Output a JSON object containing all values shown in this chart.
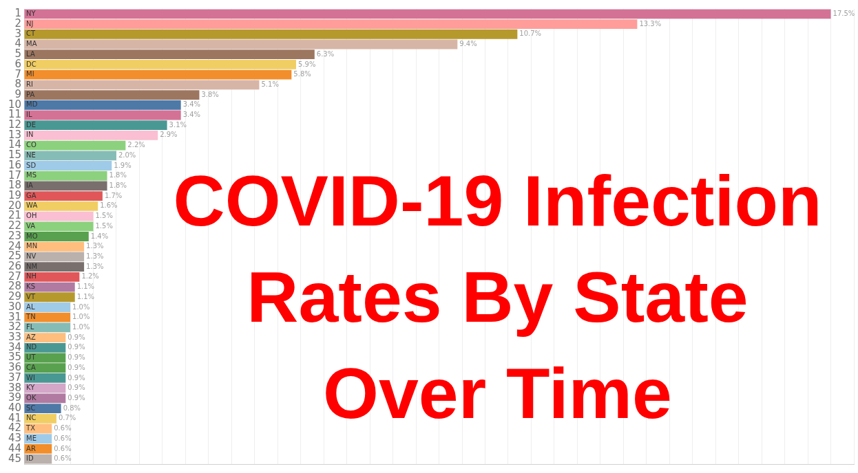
{
  "chart_data": {
    "type": "bar",
    "orientation": "horizontal",
    "title": "COVID-19 Infection Rates By State Over Time",
    "categories": [
      "1",
      "2",
      "3",
      "4",
      "5",
      "6",
      "7",
      "8",
      "9",
      "10",
      "11",
      "12",
      "13",
      "14",
      "15",
      "16",
      "17",
      "18",
      "19",
      "20",
      "21",
      "22",
      "23",
      "24",
      "25",
      "26",
      "27",
      "28",
      "29",
      "30",
      "31",
      "32",
      "33",
      "34",
      "35",
      "36",
      "37",
      "38",
      "39",
      "40",
      "41",
      "42",
      "43",
      "44",
      "45"
    ],
    "values": [
      17.5,
      13.3,
      10.7,
      9.4,
      6.3,
      5.9,
      5.8,
      5.1,
      3.8,
      3.4,
      3.4,
      3.1,
      2.9,
      2.2,
      2.0,
      1.9,
      1.8,
      1.8,
      1.7,
      1.6,
      1.5,
      1.5,
      1.4,
      1.3,
      1.3,
      1.3,
      1.2,
      1.1,
      1.1,
      1.0,
      1.0,
      1.0,
      0.9,
      0.9,
      0.9,
      0.9,
      0.9,
      0.9,
      0.9,
      0.8,
      0.7,
      0.6,
      0.6,
      0.6,
      0.6
    ],
    "value_labels": [
      "17.5%",
      "13.3%",
      "10.7%",
      "9.4%",
      "6.3%",
      "5.9%",
      "5.8%",
      "5.1%",
      "3.8%",
      "3.4%",
      "3.4%",
      "3.1%",
      "2.9%",
      "2.2%",
      "2.0%",
      "1.9%",
      "1.8%",
      "1.8%",
      "1.7%",
      "1.6%",
      "1.5%",
      "1.5%",
      "1.4%",
      "1.3%",
      "1.3%",
      "1.3%",
      "1.2%",
      "1.1%",
      "1.1%",
      "1.0%",
      "1.0%",
      "1.0%",
      "0.9%",
      "0.9%",
      "0.9%",
      "0.9%",
      "0.9%",
      "0.9%",
      "0.9%",
      "0.8%",
      "0.7%",
      "0.6%",
      "0.6%",
      "0.6%",
      "0.6%"
    ],
    "colors": [
      "#d37295",
      "#ff9d9a",
      "#b6992d",
      "#d7b5a6",
      "#9d7660",
      "#f1ce63",
      "#f28e2b",
      "#d7b5a6",
      "#9d7660",
      "#4e79a7",
      "#d37295",
      "#499894",
      "#fabfd2",
      "#8cd17d",
      "#86bcb6",
      "#a0cbe8",
      "#8cd17d",
      "#79706e",
      "#e15759",
      "#f1ce63",
      "#fabfd2",
      "#8cd17d",
      "#59a14f",
      "#ffbe7d",
      "#bab0ac",
      "#79706e",
      "#e15759",
      "#b07aa1",
      "#b6992d",
      "#a0cbe8",
      "#f28e2b",
      "#86bcb6",
      "#ffbe7d",
      "#499894",
      "#59a14f",
      "#59a14f",
      "#499894",
      "#d4a6c8",
      "#b07aa1",
      "#4e79a7",
      "#f1ce63",
      "#ffbe7d",
      "#a0cbe8",
      "#f28e2b",
      "#bab0ac"
    ],
    "annotations": [
      {
        "text": "NY",
        "y": "1"
      },
      {
        "text": "NJ",
        "y": "2"
      },
      {
        "text": "CT",
        "y": "3"
      },
      {
        "text": "MA",
        "y": "4"
      },
      {
        "text": "LA",
        "y": "5"
      },
      {
        "text": "DC",
        "y": "6"
      },
      {
        "text": "MI",
        "y": "7"
      },
      {
        "text": "RI",
        "y": "8"
      },
      {
        "text": "PA",
        "y": "9"
      },
      {
        "text": "MD",
        "y": "10"
      },
      {
        "text": "IL",
        "y": "11"
      },
      {
        "text": "DE",
        "y": "12"
      },
      {
        "text": "IN",
        "y": "13"
      },
      {
        "text": "CO",
        "y": "14"
      },
      {
        "text": "NE",
        "y": "15"
      },
      {
        "text": "SD",
        "y": "16"
      },
      {
        "text": "MS",
        "y": "17"
      },
      {
        "text": "IA",
        "y": "18"
      },
      {
        "text": "GA",
        "y": "19"
      },
      {
        "text": "WA",
        "y": "20"
      },
      {
        "text": "OH",
        "y": "21"
      },
      {
        "text": "VA",
        "y": "22"
      },
      {
        "text": "MO",
        "y": "23"
      },
      {
        "text": "MN",
        "y": "24"
      },
      {
        "text": "NV",
        "y": "25"
      },
      {
        "text": "NM",
        "y": "26"
      },
      {
        "text": "NH",
        "y": "27"
      },
      {
        "text": "KS",
        "y": "28"
      },
      {
        "text": "VT",
        "y": "29"
      },
      {
        "text": "AL",
        "y": "30"
      },
      {
        "text": "TN",
        "y": "31"
      },
      {
        "text": "FL",
        "y": "32"
      },
      {
        "text": "AZ",
        "y": "33"
      },
      {
        "text": "ND",
        "y": "34"
      },
      {
        "text": "UT",
        "y": "35"
      },
      {
        "text": "CA",
        "y": "36"
      },
      {
        "text": "WI",
        "y": "37"
      },
      {
        "text": "KY",
        "y": "38"
      },
      {
        "text": "OK",
        "y": "39"
      },
      {
        "text": "SC",
        "y": "40"
      },
      {
        "text": "NC",
        "y": "41"
      },
      {
        "text": "TX",
        "y": "42"
      },
      {
        "text": "ME",
        "y": "43"
      },
      {
        "text": "AR",
        "y": "44"
      },
      {
        "text": "ID",
        "y": "45"
      }
    ],
    "xlim": [
      0,
      18
    ],
    "xticks": [
      {
        "value": 0,
        "label": null
      },
      {
        "value": 0.5,
        "label": null
      },
      {
        "value": 1,
        "label": null
      },
      {
        "value": 1.5,
        "label": null
      },
      {
        "value": 2,
        "label": null
      },
      {
        "value": 2.5,
        "label": null
      },
      {
        "value": 3,
        "label": null
      },
      {
        "value": 3.5,
        "label": null
      },
      {
        "value": 4,
        "label": null
      },
      {
        "value": 4.5,
        "label": null
      },
      {
        "value": 5,
        "label": null
      },
      {
        "value": 5.5,
        "label": null
      },
      {
        "value": 6,
        "label": null
      },
      {
        "value": 6.5,
        "label": null
      },
      {
        "value": 7,
        "label": null
      },
      {
        "value": 7.5,
        "label": null
      },
      {
        "value": 8,
        "label": null
      },
      {
        "value": 8.5,
        "label": null
      },
      {
        "value": 9,
        "label": null
      },
      {
        "value": 9.5,
        "label": null
      },
      {
        "value": 10,
        "label": null
      },
      {
        "value": 10.5,
        "label": null
      },
      {
        "value": 11,
        "label": null
      },
      {
        "value": 11.5,
        "label": null
      },
      {
        "value": 12,
        "label": null
      },
      {
        "value": 12.5,
        "label": null
      },
      {
        "value": 13,
        "label": null
      },
      {
        "value": 13.5,
        "label": null
      },
      {
        "value": 14,
        "label": null
      },
      {
        "value": 14.5,
        "label": null
      },
      {
        "value": 15,
        "label": null
      },
      {
        "value": 15.5,
        "label": null
      },
      {
        "value": 16,
        "label": null
      },
      {
        "value": 16.5,
        "label": null
      },
      {
        "value": 17,
        "label": null
      },
      {
        "value": 17.5,
        "label": null
      },
      {
        "value": 18,
        "label": null
      }
    ],
    "grid": "x",
    "tick_labels": "y",
    "legend": false
  }
}
